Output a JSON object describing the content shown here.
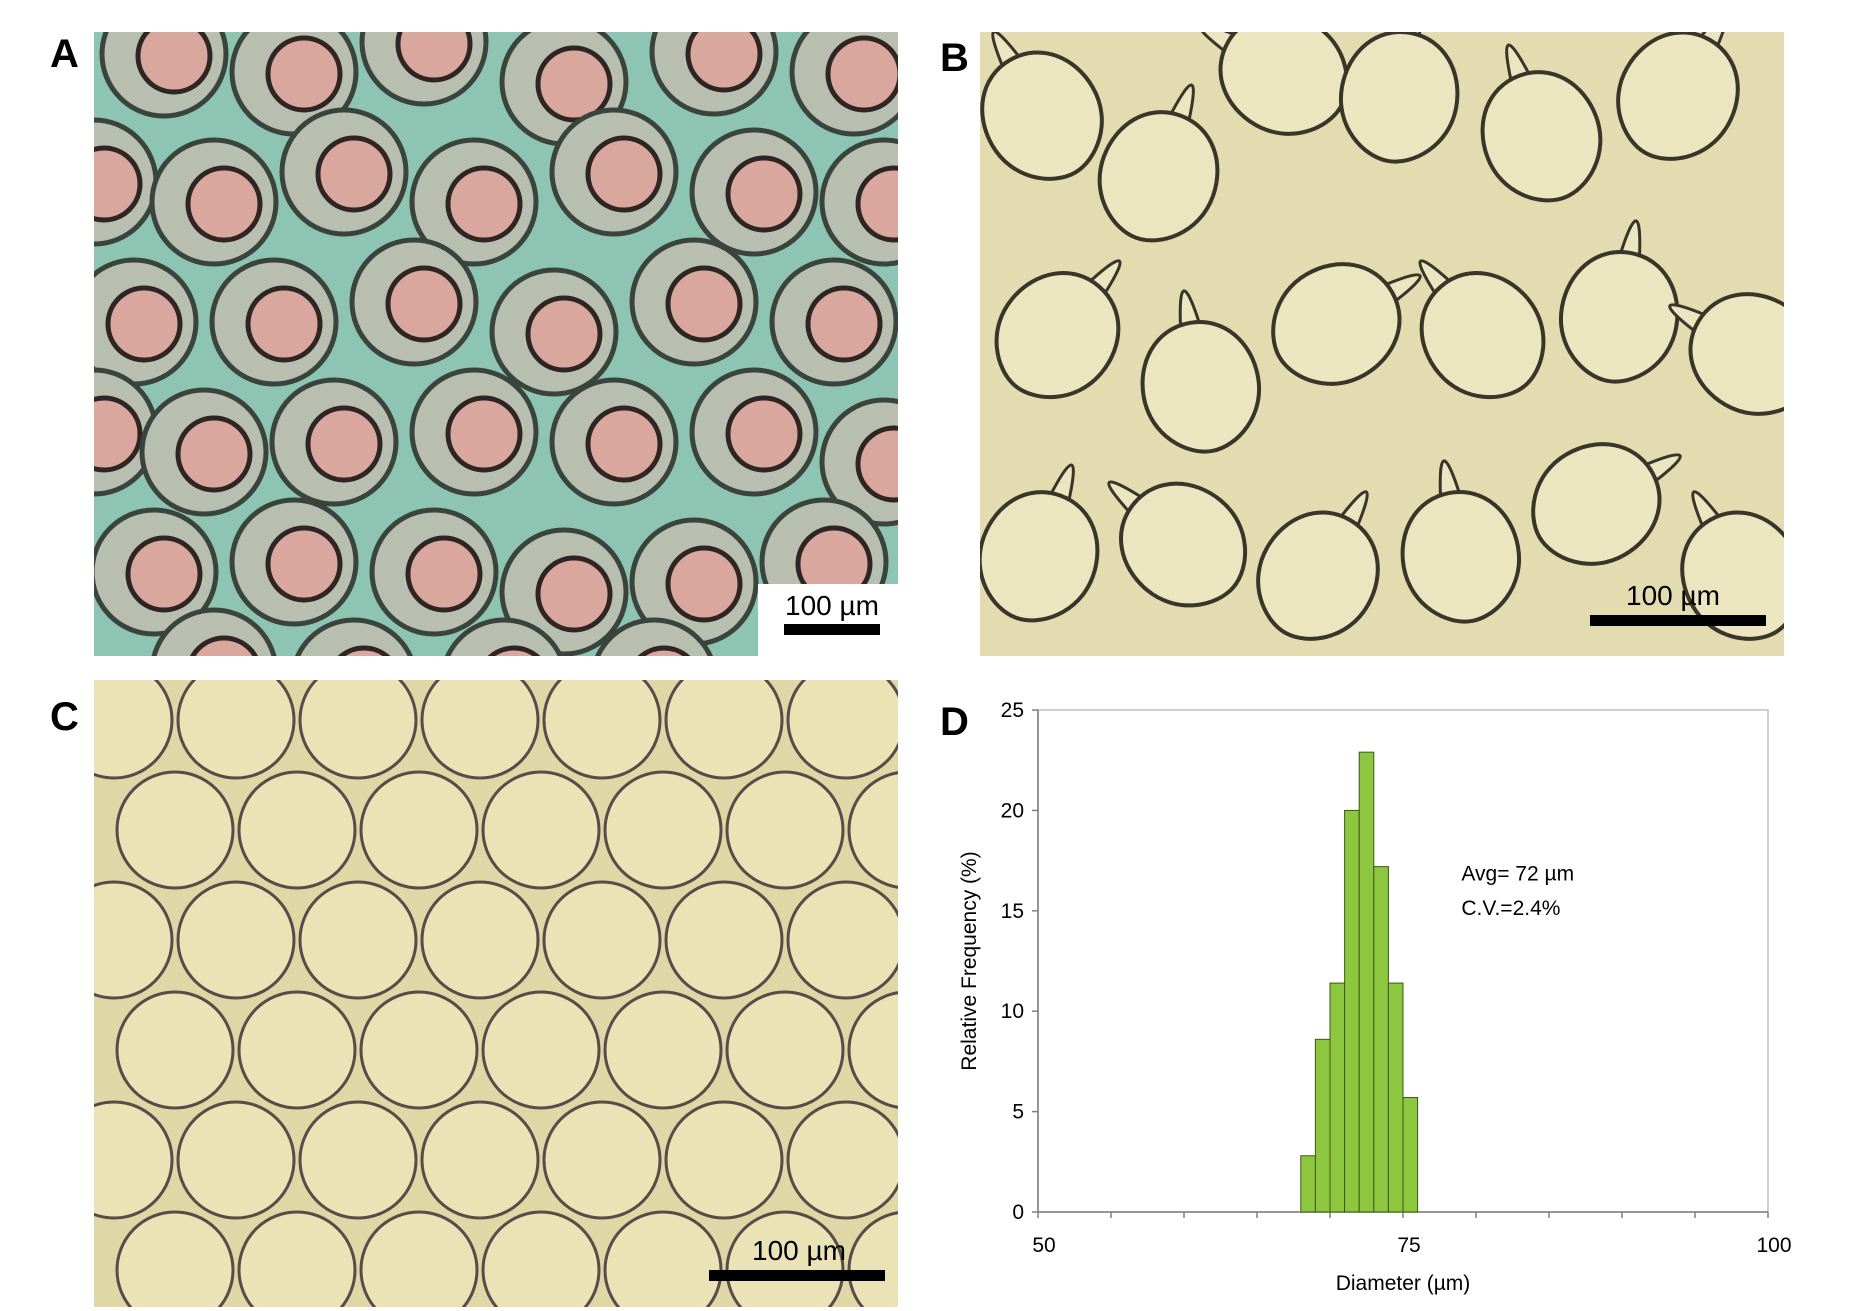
{
  "figure": {
    "panels": [
      {
        "label": "A",
        "scale_bar": "100 µm",
        "background": "#8ec5b2"
      },
      {
        "label": "B",
        "scale_bar": "100 µm",
        "background": "#e3dcb0"
      },
      {
        "label": "C",
        "scale_bar": "100 µm",
        "background": "#ded7a6"
      },
      {
        "label": "D"
      }
    ]
  },
  "chart_data": {
    "type": "bar",
    "xlabel": "Diameter (µm)",
    "ylabel": "Relative Frequency (%)",
    "xlim": [
      50,
      100
    ],
    "ylim": [
      0,
      25
    ],
    "xticks": [
      50,
      75,
      100
    ],
    "yticks": [
      0,
      5,
      10,
      15,
      20,
      25
    ],
    "bin_width": 1,
    "bins": [
      68.5,
      69.5,
      70.5,
      71.5,
      72.5,
      73.5,
      74.5,
      75.5
    ],
    "values": [
      2.8,
      8.6,
      11.4,
      20.0,
      22.9,
      17.2,
      11.4,
      5.7
    ],
    "bar_color": "#8dc63f",
    "annotation": [
      "Avg= 72 µm",
      "C.V.=2.4%"
    ],
    "grid": false
  }
}
